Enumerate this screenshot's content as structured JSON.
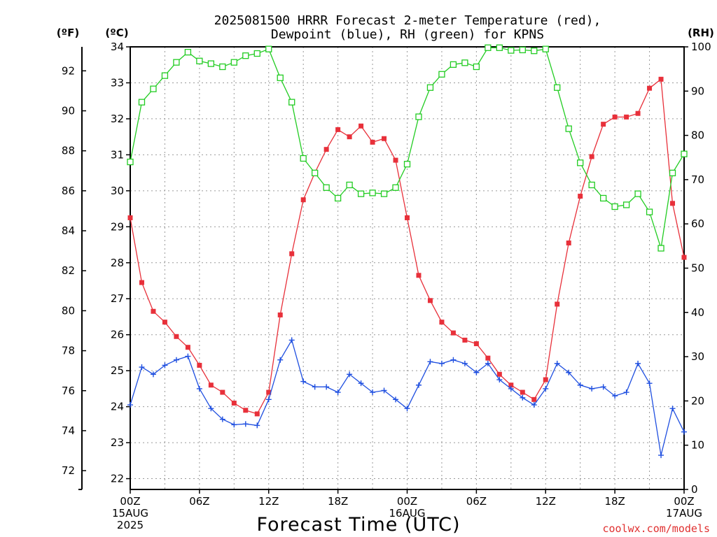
{
  "title_line1": "2025081500 HRRR Forecast 2-meter Temperature (red),",
  "title_line2": "Dewpoint (blue), RH (green) for KPNS",
  "unit_f": "(ºF)",
  "unit_c": "(ºC)",
  "unit_rh": "(RH)",
  "credit": "coolwx.com/models",
  "colors": {
    "temperature": "#e8303a",
    "dewpoint": "#1f4fe0",
    "rh": "#22cc22",
    "credit": "#e03030",
    "grid": "#999999"
  },
  "chart_data": {
    "type": "line",
    "title": "2025081500 HRRR Forecast 2-meter Temperature (red), Dewpoint (blue), RH (green) for KPNS",
    "xlabel": "Forecast Time (UTC)",
    "x_unit": "forecast hour from 2025-08-15 00Z",
    "x": [
      0,
      1,
      2,
      3,
      4,
      5,
      6,
      7,
      8,
      9,
      10,
      11,
      12,
      13,
      14,
      15,
      16,
      17,
      18,
      19,
      20,
      21,
      22,
      23,
      24,
      25,
      26,
      27,
      28,
      29,
      30,
      31,
      32,
      33,
      34,
      35,
      36,
      37,
      38,
      39,
      40,
      41,
      42,
      43,
      44,
      45,
      46,
      47,
      48
    ],
    "xlim": [
      0,
      48
    ],
    "x_ticks": [
      {
        "hour": 0,
        "lines": [
          "00Z",
          "15AUG",
          "2025"
        ]
      },
      {
        "hour": 6,
        "lines": [
          "06Z"
        ]
      },
      {
        "hour": 12,
        "lines": [
          "12Z"
        ]
      },
      {
        "hour": 18,
        "lines": [
          "18Z"
        ]
      },
      {
        "hour": 24,
        "lines": [
          "00Z",
          "16AUG"
        ]
      },
      {
        "hour": 30,
        "lines": [
          "06Z"
        ]
      },
      {
        "hour": 36,
        "lines": [
          "12Z"
        ]
      },
      {
        "hour": 42,
        "lines": [
          "18Z"
        ]
      },
      {
        "hour": 48,
        "lines": [
          "00Z",
          "17AUG"
        ]
      }
    ],
    "y_left_celsius": {
      "ylim": [
        21.7,
        34
      ],
      "ticks": [
        22,
        23,
        24,
        25,
        26,
        27,
        28,
        29,
        30,
        31,
        32,
        33,
        34
      ]
    },
    "y_left_fahrenheit": {
      "ticks": [
        72,
        74,
        76,
        78,
        80,
        82,
        84,
        86,
        88,
        90,
        92
      ]
    },
    "y_right_rh": {
      "ylim": [
        0,
        100
      ],
      "ticks": [
        0,
        10,
        20,
        30,
        40,
        50,
        60,
        70,
        80,
        90,
        100
      ]
    },
    "grid": true,
    "series": [
      {
        "name": "Temperature",
        "key": "temperature",
        "axis": "celsius",
        "marker": "filled-square",
        "values": [
          29.25,
          27.45,
          26.65,
          26.35,
          25.95,
          25.65,
          25.15,
          24.6,
          24.4,
          24.1,
          23.9,
          23.8,
          24.4,
          26.55,
          28.25,
          29.75,
          30.5,
          31.15,
          31.7,
          31.5,
          31.8,
          31.35,
          31.45,
          30.85,
          29.25,
          27.65,
          26.95,
          26.35,
          26.05,
          25.85,
          25.75,
          25.35,
          24.9,
          24.6,
          24.4,
          24.2,
          24.75,
          26.85,
          28.55,
          29.85,
          30.95,
          31.85,
          32.05,
          32.05,
          32.15,
          32.85,
          33.1,
          29.65,
          28.15
        ]
      },
      {
        "name": "Dewpoint",
        "key": "dewpoint",
        "axis": "celsius",
        "marker": "plus",
        "values": [
          24.05,
          25.1,
          24.9,
          25.15,
          25.3,
          25.4,
          24.5,
          23.95,
          23.65,
          23.5,
          23.52,
          23.48,
          24.2,
          25.3,
          25.85,
          24.7,
          24.55,
          24.55,
          24.4,
          24.9,
          24.65,
          24.4,
          24.45,
          24.2,
          23.95,
          24.6,
          25.25,
          25.2,
          25.3,
          25.2,
          24.95,
          25.2,
          24.75,
          24.5,
          24.25,
          24.05,
          24.5,
          25.2,
          24.95,
          24.6,
          24.5,
          24.55,
          24.3,
          24.4,
          25.2,
          24.65,
          22.65,
          23.95,
          23.3
        ]
      },
      {
        "name": "RH",
        "key": "rh",
        "axis": "rh",
        "marker": "open-square",
        "values": [
          74,
          87.5,
          90.5,
          93.5,
          96.5,
          98.8,
          96.8,
          96.2,
          95.5,
          96.5,
          98,
          98.5,
          99.5,
          93,
          87.5,
          74.8,
          71.5,
          68.2,
          65.8,
          68.8,
          66.8,
          67,
          66.8,
          68.2,
          73.5,
          84.2,
          90.8,
          93.8,
          96,
          96.4,
          95.5,
          99.8,
          99.8,
          99.2,
          99.3,
          99.1,
          99.5,
          90.8,
          81.5,
          73.8,
          68.8,
          65.8,
          63.9,
          64.3,
          66.8,
          62.7,
          54.5,
          71.5,
          75.8
        ]
      }
    ]
  }
}
